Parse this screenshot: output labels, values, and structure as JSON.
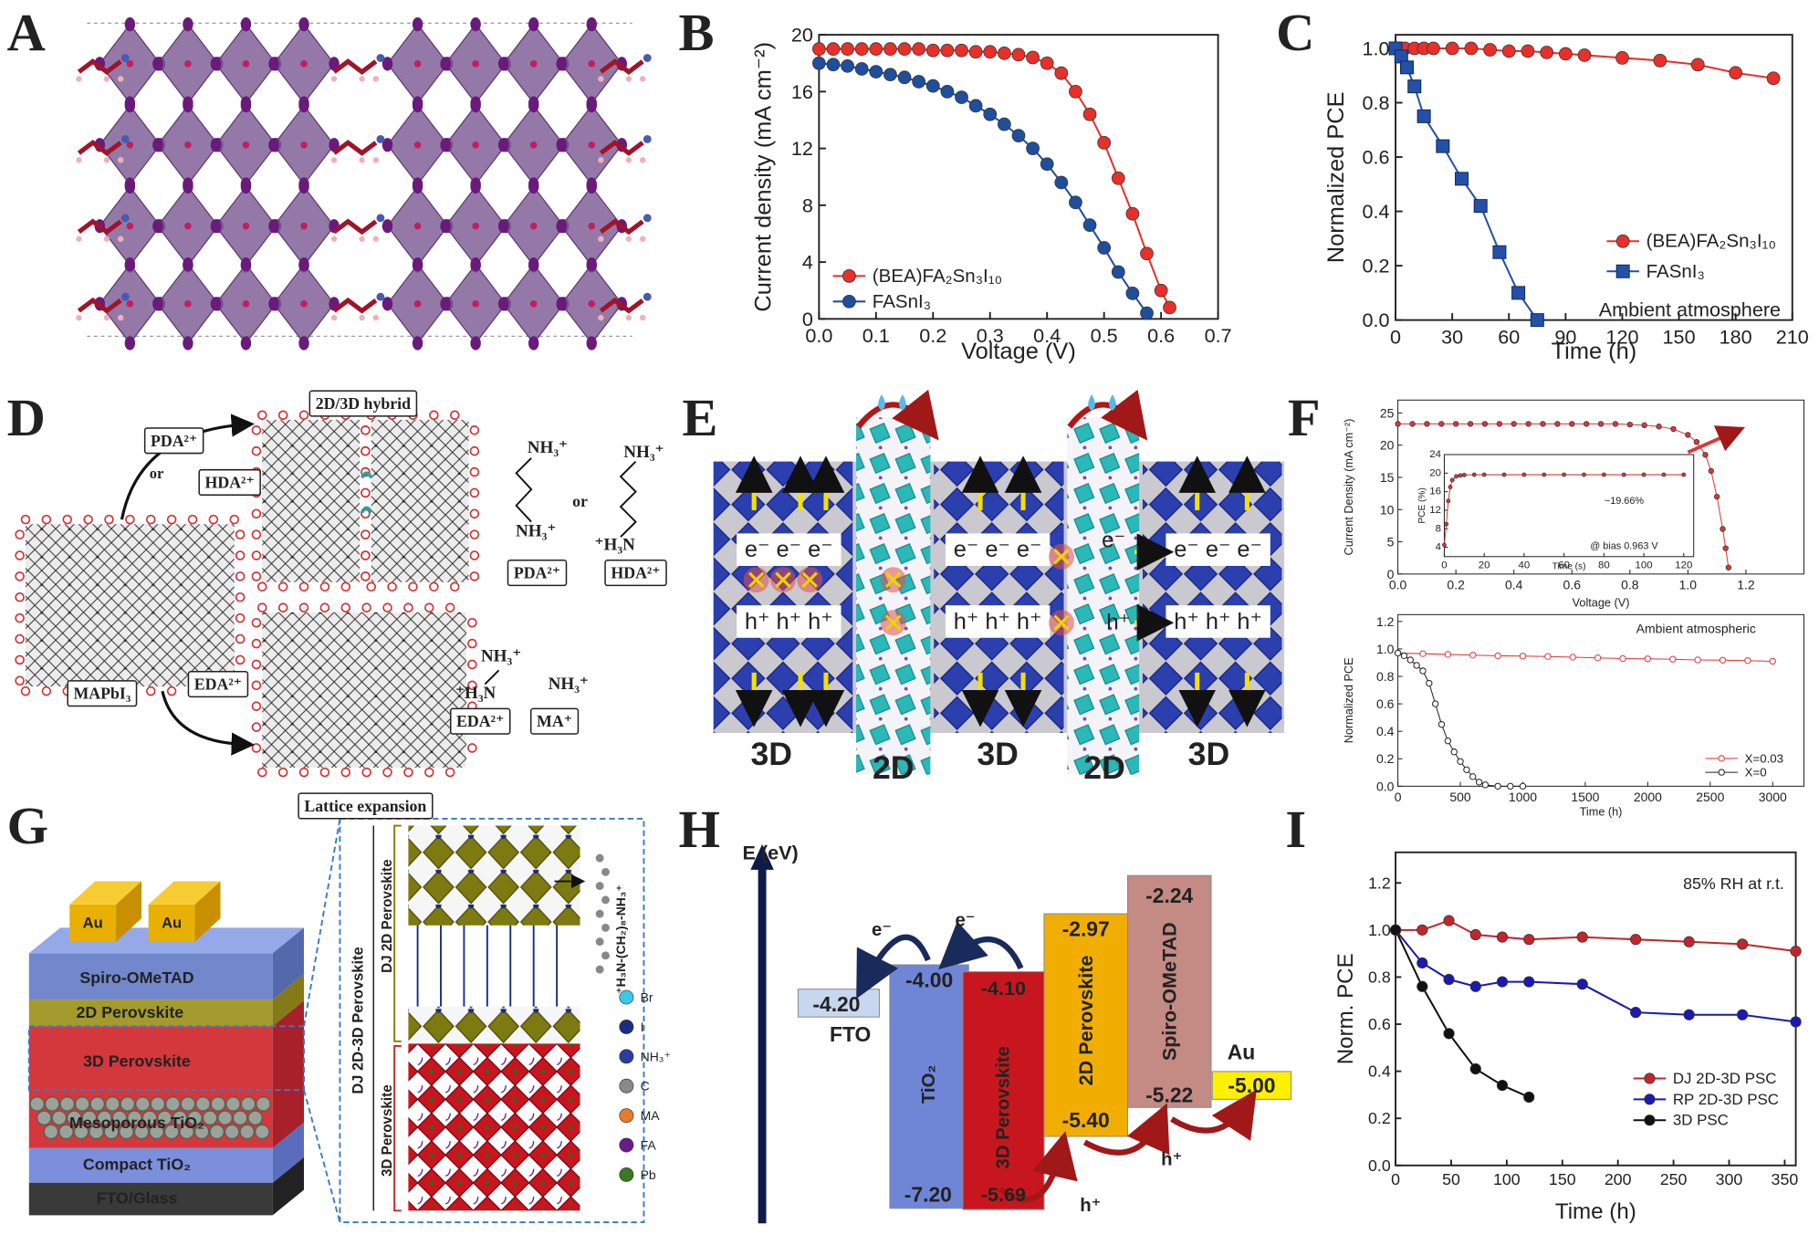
{
  "panel_labels": [
    "A",
    "B",
    "C",
    "D",
    "E",
    "F",
    "G",
    "H",
    "I"
  ],
  "chart_data": [
    {
      "type": "line",
      "xlabel": "Voltage (V)",
      "ylabel": "Current density (mA cm⁻²)",
      "xlim": [
        0,
        0.7
      ],
      "ylim": [
        0,
        20
      ],
      "xticks": [
        {
          "value": 0,
          "label": "0.0"
        },
        0.1,
        0.2,
        0.3,
        0.4,
        0.5,
        0.6,
        0.7
      ],
      "yticks": [
        0,
        4,
        8,
        12,
        16,
        20
      ],
      "legend": "lower left",
      "series": [
        {
          "name": "(BEA)FA₂Sn₃I₁₀",
          "color": "#e8302a",
          "marker": "circle",
          "x": [
            0,
            0.025,
            0.05,
            0.075,
            0.1,
            0.125,
            0.15,
            0.175,
            0.2,
            0.225,
            0.25,
            0.275,
            0.3,
            0.325,
            0.35,
            0.375,
            0.4,
            0.425,
            0.45,
            0.475,
            0.5,
            0.525,
            0.55,
            0.575,
            0.6,
            0.615
          ],
          "values": [
            19,
            19,
            19,
            19,
            19,
            19,
            19,
            19,
            18.9,
            18.9,
            18.9,
            18.8,
            18.8,
            18.7,
            18.6,
            18.4,
            18.0,
            17.3,
            16.0,
            14.4,
            12.4,
            9.9,
            7.4,
            4.6,
            2.0,
            0.8
          ]
        },
        {
          "name": "FASnI₃",
          "color": "#1f4e9c",
          "marker": "circle",
          "x": [
            0,
            0.025,
            0.05,
            0.075,
            0.1,
            0.125,
            0.15,
            0.175,
            0.2,
            0.225,
            0.25,
            0.275,
            0.3,
            0.325,
            0.35,
            0.375,
            0.4,
            0.425,
            0.45,
            0.475,
            0.5,
            0.525,
            0.55,
            0.575
          ],
          "values": [
            18.0,
            17.9,
            17.8,
            17.6,
            17.4,
            17.2,
            17.0,
            16.7,
            16.4,
            16.0,
            15.6,
            15.0,
            14.4,
            13.7,
            12.9,
            12.0,
            10.9,
            9.6,
            8.2,
            6.6,
            5.0,
            3.3,
            1.8,
            0.4
          ]
        }
      ]
    },
    {
      "type": "line",
      "xlabel": "Time (h)",
      "ylabel": "Normalized PCE",
      "xlim": [
        0,
        210
      ],
      "ylim": [
        0,
        1.05
      ],
      "xticks": [
        0,
        30,
        60,
        90,
        120,
        150,
        180,
        210
      ],
      "yticks": [
        {
          "value": 0,
          "label": "0.0"
        },
        0.2,
        0.4,
        0.6,
        0.8,
        {
          "value": 1,
          "label": "1.0"
        }
      ],
      "legend": "center right",
      "annotations": [
        "Ambient atmosphere"
      ],
      "series": [
        {
          "name": "(BEA)FA₂Sn₃I₁₀",
          "color": "#e8302a",
          "marker": "circle",
          "x": [
            0,
            5,
            10,
            15,
            20,
            30,
            40,
            50,
            60,
            70,
            80,
            90,
            100,
            120,
            140,
            160,
            180,
            200
          ],
          "values": [
            1,
            1,
            1,
            1,
            1,
            1,
            1,
            0.995,
            0.99,
            0.99,
            0.985,
            0.98,
            0.975,
            0.965,
            0.955,
            0.94,
            0.91,
            0.89
          ]
        },
        {
          "name": "FASnI₃",
          "color": "#2450a8",
          "marker": "square",
          "x": [
            0,
            3,
            6,
            10,
            15,
            25,
            35,
            45,
            55,
            65,
            75
          ],
          "values": [
            1,
            0.97,
            0.93,
            0.86,
            0.75,
            0.64,
            0.52,
            0.42,
            0.25,
            0.1,
            0
          ]
        }
      ]
    },
    {
      "type": "line",
      "xlabel": "Voltage (V)",
      "ylabel": "Current Density (mA cm⁻²)",
      "xlim": [
        0,
        1.4
      ],
      "ylim": [
        0,
        27
      ],
      "xticks": [
        {
          "value": 0,
          "label": "0.0"
        },
        0.2,
        0.4,
        0.6,
        0.8,
        {
          "value": 1,
          "label": "1.0"
        },
        1.2
      ],
      "yticks": [
        0,
        5,
        10,
        15,
        20,
        25
      ],
      "series": [
        {
          "color": "#e0353a",
          "marker": "circle",
          "x": [
            0,
            0.05,
            0.1,
            0.15,
            0.2,
            0.25,
            0.3,
            0.35,
            0.4,
            0.45,
            0.5,
            0.55,
            0.6,
            0.65,
            0.7,
            0.75,
            0.8,
            0.85,
            0.9,
            0.95,
            1.0,
            1.03,
            1.06,
            1.08,
            1.1,
            1.12,
            1.13,
            1.14
          ],
          "values": [
            23.3,
            23.3,
            23.3,
            23.3,
            23.3,
            23.3,
            23.3,
            23.3,
            23.3,
            23.3,
            23.3,
            23.3,
            23.3,
            23.3,
            23.3,
            23.3,
            23.2,
            23.1,
            22.9,
            22.5,
            21.6,
            20.5,
            18.5,
            16,
            12,
            7,
            4,
            1
          ]
        }
      ]
    },
    {
      "type": "line",
      "xlabel": "Time (s)",
      "ylabel": "PCE (%)",
      "xlim": [
        0,
        125
      ],
      "ylim": [
        2,
        24
      ],
      "xticks": [
        0,
        20,
        40,
        60,
        80,
        100,
        120
      ],
      "yticks": [
        4,
        8,
        12,
        16,
        20,
        24
      ],
      "annotations": [
        "~19.66%",
        "@ bias 0.963 V"
      ],
      "series": [
        {
          "color": "#e0353a",
          "marker": "circle",
          "x": [
            0,
            1,
            2,
            3,
            4,
            6,
            8,
            10,
            15,
            20,
            30,
            40,
            50,
            60,
            70,
            80,
            90,
            100,
            110,
            120
          ],
          "values": [
            4.5,
            9,
            14,
            17,
            18.5,
            19.3,
            19.5,
            19.6,
            19.66,
            19.66,
            19.66,
            19.66,
            19.66,
            19.66,
            19.66,
            19.66,
            19.66,
            19.66,
            19.66,
            19.66
          ]
        }
      ]
    },
    {
      "type": "line",
      "xlabel": "Time (h)",
      "ylabel": "Normalized PCE",
      "xlim": [
        0,
        3250
      ],
      "ylim": [
        0,
        1.25
      ],
      "xticks": [
        0,
        500,
        1000,
        1500,
        2000,
        2500,
        3000
      ],
      "yticks": [
        {
          "value": 0,
          "label": "0.0"
        },
        0.2,
        0.4,
        0.6,
        0.8,
        {
          "value": 1,
          "label": "1.0"
        },
        1.2
      ],
      "legend": "lower right",
      "annotations": [
        "Ambient atmospheric"
      ],
      "series": [
        {
          "name": "X=0.03",
          "color": "#e0353a",
          "marker": "open",
          "x": [
            0,
            200,
            400,
            600,
            800,
            1000,
            1200,
            1400,
            1600,
            1800,
            2000,
            2200,
            2400,
            2600,
            2800,
            3000
          ],
          "values": [
            0.97,
            0.965,
            0.96,
            0.955,
            0.95,
            0.948,
            0.945,
            0.94,
            0.935,
            0.93,
            0.928,
            0.925,
            0.92,
            0.918,
            0.915,
            0.91
          ]
        },
        {
          "name": "X=0",
          "color": "#222222",
          "marker": "open",
          "x": [
            0,
            50,
            100,
            150,
            200,
            250,
            300,
            350,
            400,
            450,
            500,
            550,
            600,
            650,
            700,
            800,
            900,
            1000
          ],
          "values": [
            0.97,
            0.95,
            0.92,
            0.88,
            0.84,
            0.75,
            0.6,
            0.45,
            0.33,
            0.25,
            0.18,
            0.12,
            0.07,
            0.03,
            0.01,
            0,
            0,
            0
          ]
        }
      ]
    },
    {
      "type": "line",
      "xlabel": "Time (h)",
      "ylabel": "Norm. PCE",
      "xlim": [
        0,
        360
      ],
      "ylim": [
        0,
        1.33
      ],
      "xticks": [
        0,
        50,
        100,
        150,
        200,
        250,
        300,
        350
      ],
      "yticks": [
        {
          "value": 0,
          "label": "0.0"
        },
        0.2,
        0.4,
        0.6,
        0.8,
        {
          "value": 1,
          "label": "1.0"
        },
        1.2
      ],
      "legend": "lower right",
      "annotations": [
        "85% RH at r.t."
      ],
      "series": [
        {
          "name": "DJ 2D-3D PSC",
          "color": "#c0272d",
          "marker": "circle",
          "x": [
            0,
            24,
            48,
            72,
            96,
            120,
            168,
            216,
            264,
            312,
            360
          ],
          "values": [
            1,
            1,
            1.04,
            0.98,
            0.97,
            0.96,
            0.97,
            0.96,
            0.95,
            0.94,
            0.91
          ]
        },
        {
          "name": "RP 2D-3D PSC",
          "color": "#1a1ab0",
          "marker": "circle",
          "x": [
            0,
            24,
            48,
            72,
            96,
            120,
            168,
            216,
            264,
            312,
            360
          ],
          "values": [
            1,
            0.86,
            0.79,
            0.76,
            0.78,
            0.78,
            0.77,
            0.65,
            0.64,
            0.64,
            0.61
          ]
        },
        {
          "name": "3D PSC",
          "color": "#111111",
          "marker": "circle",
          "x": [
            0,
            24,
            48,
            72,
            96,
            120
          ],
          "values": [
            1,
            0.76,
            0.56,
            0.41,
            0.34,
            0.29
          ]
        }
      ]
    }
  ],
  "panel_D": {
    "texts": [
      "2D/3D hybrid",
      "PDA²⁺",
      "or",
      "HDA²⁺",
      "MAPbI₃",
      "EDA²⁺",
      "NH₃⁺",
      "NH₃⁺",
      "or",
      "NH₃⁺",
      "⁺H₃N",
      "PDA²⁺",
      "HDA²⁺",
      "NH₃⁺",
      "⁺H₃N",
      "EDA²⁺",
      "NH₃⁺",
      "MA⁺"
    ]
  },
  "panel_E": {
    "texts": [
      "e⁻ e⁻ e⁻",
      "h⁺ h⁺ h⁺",
      "e⁻ e⁻ e⁻",
      "h⁺ h⁺ h⁺",
      "e⁻",
      "h⁺",
      "e⁻ e⁻ e⁻",
      "h⁺ h⁺ h⁺",
      "3D",
      "2D",
      "3D",
      "2D",
      "3D"
    ]
  },
  "panel_G": {
    "texts": [
      "Lattice expansion",
      "Au",
      "Au",
      "Spiro-OMeTAD",
      "2D Perovskite",
      "3D Perovskite",
      "Mesoporous TiO₂",
      "Compact TiO₂",
      "FTO/Glass",
      "DJ 2D-3D Perovskite",
      "DJ 2D Perovskite",
      "3D Perovskite",
      "⁺H₃N-(CH₂)₈-NH₃⁺"
    ],
    "legend": [
      "Br",
      "I",
      "NH₃⁺",
      "C",
      "MA",
      "FA",
      "Pb"
    ]
  },
  "panel_H": {
    "texts": [
      "E (eV)",
      "e⁻",
      "e⁻",
      "-4.20",
      "FTO",
      "-4.00",
      "TiO₂",
      "-7.20",
      "-4.10",
      "3D Perovskite",
      "-5.69",
      "-2.97",
      "2D Perovskite",
      "-5.40",
      "-2.24",
      "Spiro-OMeTAD",
      "-5.22",
      "Au",
      "-5.00",
      "h⁺",
      "h⁺"
    ]
  }
}
